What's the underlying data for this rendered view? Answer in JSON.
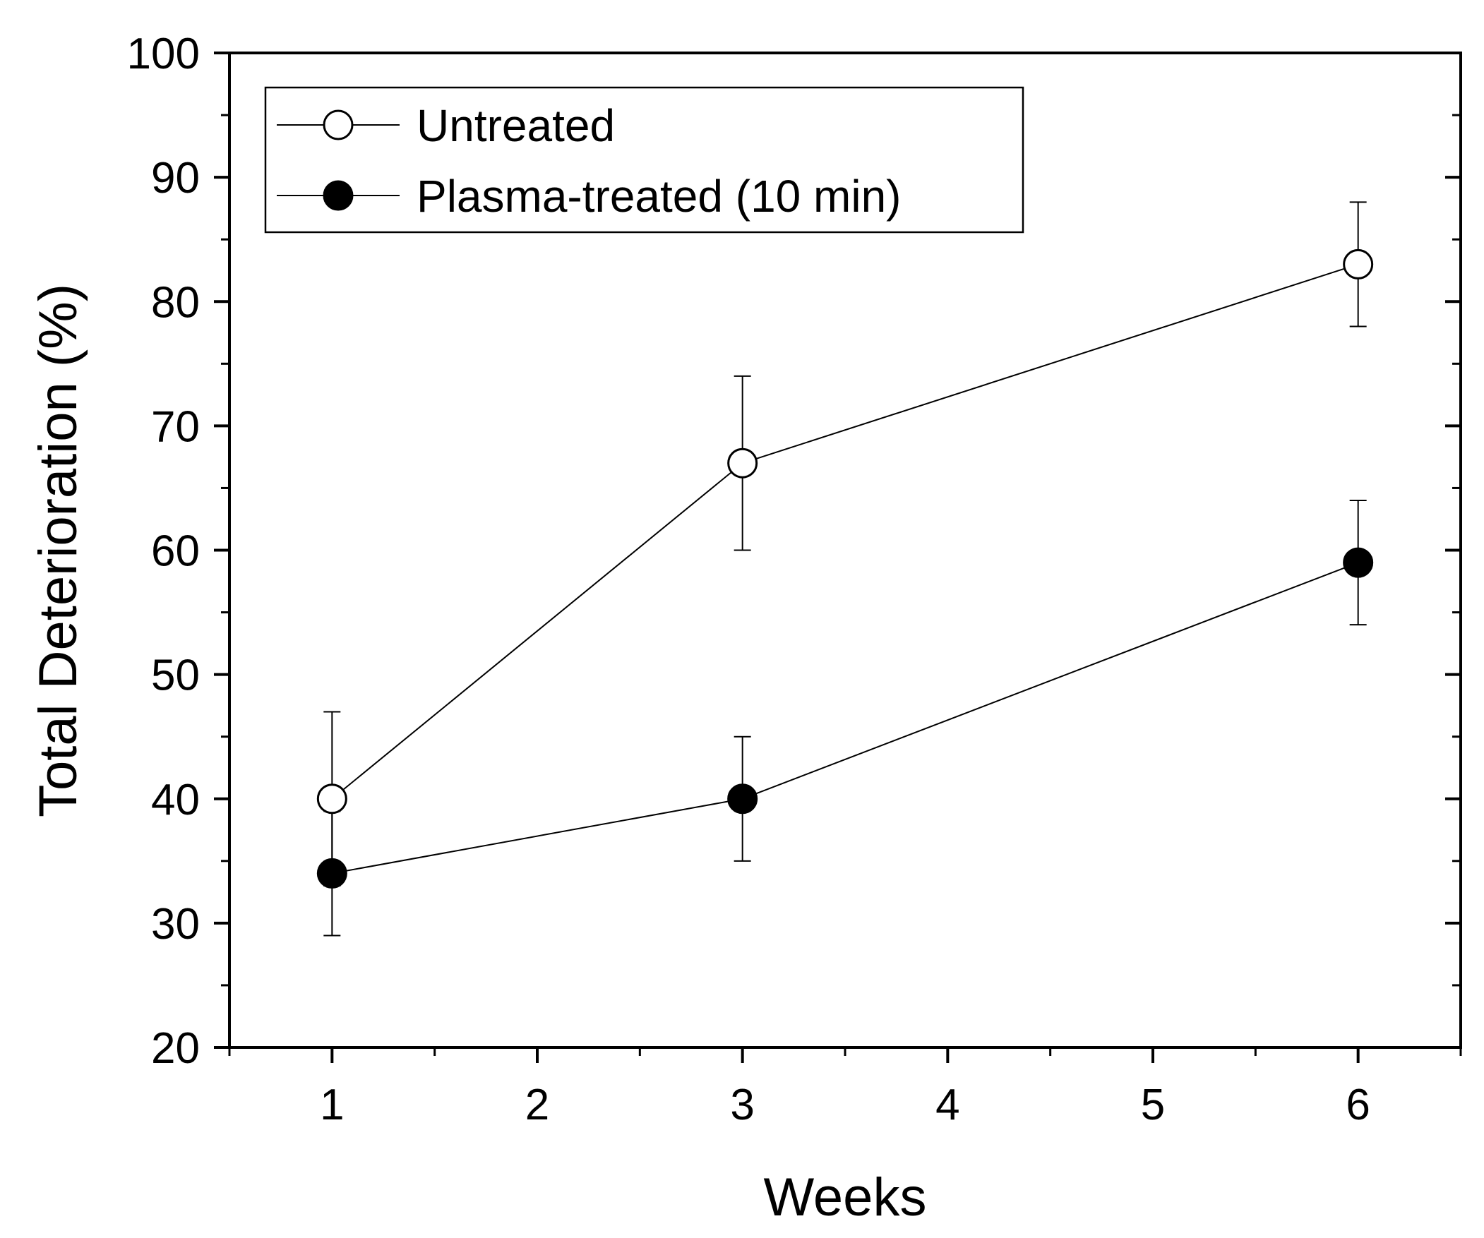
{
  "chart_data": {
    "type": "line",
    "title": "",
    "xlabel": "Weeks",
    "ylabel": "Total Deterioration (%)",
    "xlim": [
      0.5,
      6.5
    ],
    "ylim": [
      20,
      100
    ],
    "x_ticks": [
      1,
      2,
      3,
      4,
      5,
      6
    ],
    "y_ticks": [
      20,
      30,
      40,
      50,
      60,
      70,
      80,
      90,
      100
    ],
    "x_tick_labels": [
      "1",
      "2",
      "3",
      "4",
      "5",
      "6"
    ],
    "y_tick_labels": [
      "20",
      "30",
      "40",
      "50",
      "60",
      "70",
      "80",
      "90",
      "100"
    ],
    "grid": false,
    "legend_position": "top-left",
    "series": [
      {
        "name": "Untreated",
        "marker": "open-circle",
        "x": [
          1,
          3,
          6
        ],
        "values": [
          40,
          67,
          83
        ],
        "error": [
          7,
          7,
          5
        ]
      },
      {
        "name": "Plasma-treated (10 min)",
        "marker": "filled-circle",
        "x": [
          1,
          3,
          6
        ],
        "values": [
          34,
          40,
          59
        ],
        "error": [
          5,
          5,
          5
        ]
      }
    ]
  }
}
